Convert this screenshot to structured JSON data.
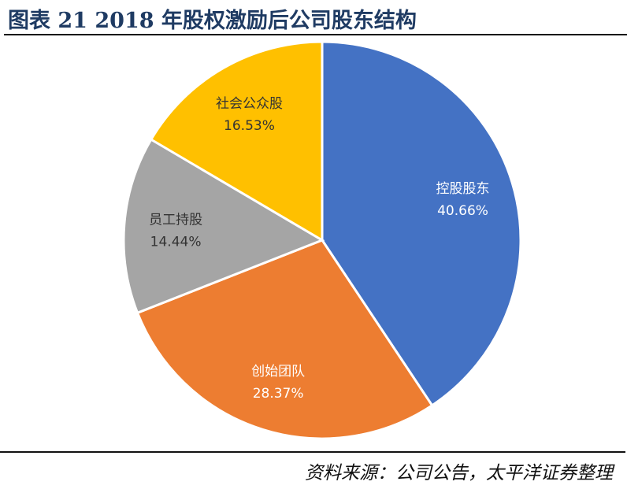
{
  "title": "图表 21 2018 年股权激励后公司股东结构",
  "source": "资料来源：公司公告，太平洋证券整理",
  "chart_data": {
    "type": "pie",
    "start": "12 o'clock, clockwise",
    "slices": [
      {
        "label": "控股股东",
        "value": 40.66,
        "value_label": "40.66%",
        "color": "#4472C4",
        "text_color": "#ffffff"
      },
      {
        "label": "创始团队",
        "value": 28.37,
        "value_label": "28.37%",
        "color": "#ED7D31",
        "text_color": "#ffffff"
      },
      {
        "label": "员工持股",
        "value": 14.44,
        "value_label": "14.44%",
        "color": "#A5A5A5",
        "text_color": "#333333"
      },
      {
        "label": "社会公众股",
        "value": 16.53,
        "value_label": "16.53%",
        "color": "#FFC000",
        "text_color": "#333333"
      }
    ]
  }
}
